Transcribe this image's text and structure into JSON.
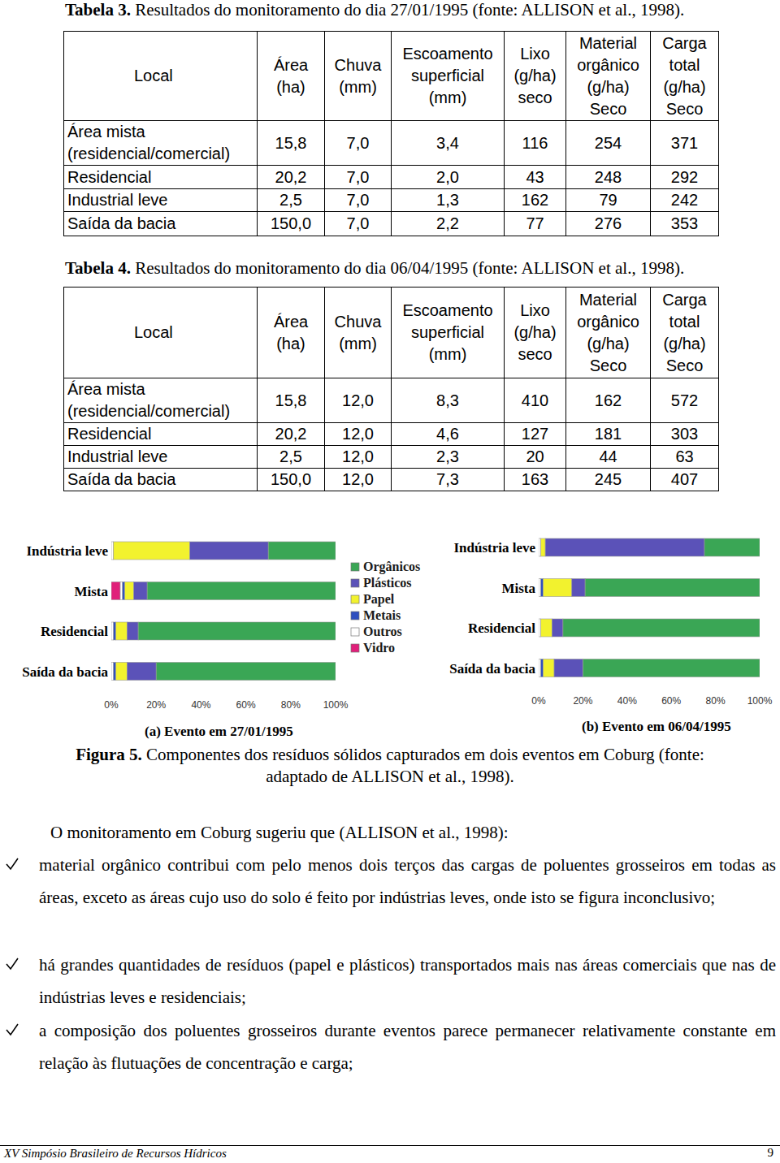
{
  "tables": [
    {
      "caption": {
        "label": "Tabela 3.",
        "text": "Resultados do monitoramento do dia 27/01/1995 (fonte: ALLISON et al., 1998)."
      },
      "header": [
        [
          "Local"
        ],
        [
          "Área",
          "(ha)"
        ],
        [
          "Chuva",
          "(mm)"
        ],
        [
          "Escoamento",
          "superficial",
          "(mm)"
        ],
        [
          "Lixo",
          "(g/ha)",
          "seco"
        ],
        [
          "Material",
          "orgânico",
          "(g/ha)",
          "Seco"
        ],
        [
          "Carga",
          "total",
          "(g/ha)",
          "Seco"
        ]
      ],
      "rows": [
        [
          "Área mista (residencial/comercial)",
          "15,8",
          "7,0",
          "3,4",
          "116",
          "254",
          "371"
        ],
        [
          "Residencial",
          "20,2",
          "7,0",
          "2,0",
          "43",
          "248",
          "292"
        ],
        [
          "Industrial leve",
          "2,5",
          "7,0",
          "1,3",
          "162",
          "79",
          "242"
        ],
        [
          "Saída da bacia",
          "150,0",
          "7,0",
          "2,2",
          "77",
          "276",
          "353"
        ]
      ]
    },
    {
      "caption": {
        "label": "Tabela 4.",
        "text": "Resultados do monitoramento do dia 06/04/1995 (fonte: ALLISON et al., 1998)."
      },
      "header": [
        [
          "Local"
        ],
        [
          "Área",
          "(ha)"
        ],
        [
          "Chuva",
          "(mm)"
        ],
        [
          "Escoamento",
          "superficial",
          "(mm)"
        ],
        [
          "Lixo",
          "(g/ha)",
          "seco"
        ],
        [
          "Material",
          "orgânico",
          "(g/ha)",
          "Seco"
        ],
        [
          "Carga",
          "total",
          "(g/ha)",
          "Seco"
        ]
      ],
      "rows": [
        [
          "Área mista (residencial/comercial)",
          "15,8",
          "12,0",
          "8,3",
          "410",
          "162",
          "572"
        ],
        [
          "Residencial",
          "20,2",
          "12,0",
          "4,6",
          "127",
          "181",
          "303"
        ],
        [
          "Industrial leve",
          "2,5",
          "12,0",
          "2,3",
          "20",
          "44",
          "63"
        ],
        [
          "Saída da bacia",
          "150,0",
          "12,0",
          "7,3",
          "163",
          "245",
          "407"
        ]
      ]
    }
  ],
  "chart_data": [
    {
      "type": "bar",
      "title": "(a) Evento em 27/01/1995",
      "orientation": "horizontal",
      "stacked": true,
      "legend": "right",
      "categories": [
        "Indústria leve",
        "Mista",
        "Residencial",
        "Saída da bacia"
      ],
      "series": [
        {
          "name": "Orgânicos",
          "color": "#3aa655",
          "values": [
            30,
            84,
            88,
            80
          ]
        },
        {
          "name": "Plásticos",
          "color": "#5b52b8",
          "values": [
            35,
            6,
            5,
            13
          ]
        },
        {
          "name": "Papel",
          "color": "#f2f22e",
          "values": [
            34,
            4,
            5,
            5
          ]
        },
        {
          "name": "Metais",
          "color": "#2f4fbf",
          "values": [
            0,
            1,
            1,
            1
          ]
        },
        {
          "name": "Outros",
          "color": "#ffffff",
          "values": [
            1,
            1,
            1,
            1
          ]
        },
        {
          "name": "Vidro",
          "color": "#e0207a",
          "values": [
            0,
            4,
            0,
            0
          ]
        }
      ],
      "xlim": [
        0,
        100
      ],
      "xticks": [
        {
          "value": 0,
          "label": "0%"
        },
        {
          "value": 20,
          "label": "20%"
        },
        {
          "value": 40,
          "label": "40%"
        },
        {
          "value": 60,
          "label": "60%"
        },
        {
          "value": 80,
          "label": "80%"
        },
        {
          "value": 100,
          "label": "100%"
        }
      ]
    },
    {
      "type": "bar",
      "title": "(b) Evento em 06/04/1995",
      "orientation": "horizontal",
      "stacked": true,
      "categories": [
        "Indústria leve",
        "Mista",
        "Residencial",
        "Saída da bacia"
      ],
      "series": [
        {
          "color": "#3aa655",
          "values": [
            25,
            79,
            89,
            80
          ]
        },
        {
          "color": "#5b52b8",
          "values": [
            72,
            6,
            5,
            13
          ]
        },
        {
          "color": "#f2f22e",
          "values": [
            2,
            13,
            5,
            5
          ]
        },
        {
          "color": "#2f4fbf",
          "values": [
            0,
            1,
            0,
            1
          ]
        },
        {
          "color": "#ffffff",
          "values": [
            1,
            1,
            1,
            1
          ]
        },
        {
          "color": "#e0207a",
          "values": [
            0,
            0,
            0,
            0
          ]
        }
      ],
      "xlim": [
        0,
        100
      ],
      "xticks": [
        {
          "value": 0,
          "label": "0%"
        },
        {
          "value": 20,
          "label": "20%"
        },
        {
          "value": 40,
          "label": "40%"
        },
        {
          "value": 60,
          "label": "60%"
        },
        {
          "value": 80,
          "label": "80%"
        },
        {
          "value": 100,
          "label": "100%"
        }
      ]
    }
  ],
  "figure": {
    "caption": {
      "label": "Figura 5.",
      "text": "Componentes dos resíduos sólidos capturados em dois eventos em Coburg (fonte: adaptado de ALLISON et al., 1998)."
    }
  },
  "text": {
    "intro": "O monitoramento em Coburg sugeriu que (ALLISON et al., 1998):",
    "bullets": [
      "material orgânico contribui com pelo menos dois terços das cargas de poluentes grosseiros em todas as áreas, exceto as áreas cujo uso do solo é feito por indústrias leves, onde isto se figura inconclusivo;",
      "há grandes quantidades de resíduos (papel e plásticos) transportados mais nas áreas comerciais que nas de indústrias leves e residenciais;",
      "a composição dos poluentes grosseiros durante eventos parece permanecer relativamente constante em relação às flutuações de concentração e carga;"
    ]
  },
  "footer": {
    "left": "XV Simpósio Brasileiro de Recursos Hídricos",
    "page": "9"
  }
}
